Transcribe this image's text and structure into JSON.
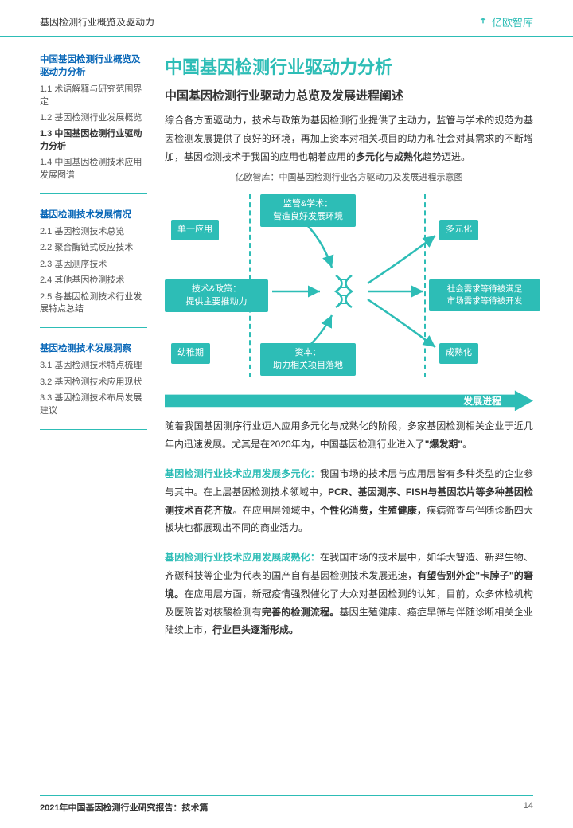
{
  "colors": {
    "teal": "#2DBDB6",
    "blue": "#0A68B8",
    "text": "#333333",
    "muted": "#555555"
  },
  "header": {
    "label": "基因检测行业概览及驱动力",
    "brand": "亿欧智库"
  },
  "sidebar": {
    "sections": [
      {
        "heading": "中国基因检测行业概览及驱动力分析",
        "items": [
          {
            "label": "1.1 术语解释与研究范围界定",
            "active": false
          },
          {
            "label": "1.2 基因检测行业发展概览",
            "active": false
          },
          {
            "label": "1.3 中国基因检测行业驱动力分析",
            "active": true
          },
          {
            "label": "1.4 中国基因检测技术应用发展图谱",
            "active": false
          }
        ]
      },
      {
        "heading": "基因检测技术发展情况",
        "items": [
          {
            "label": "2.1 基因检测技术总览",
            "active": false
          },
          {
            "label": "2.2 聚合酶链式反应技术",
            "active": false
          },
          {
            "label": "2.3 基因测序技术",
            "active": false
          },
          {
            "label": "2.4 其他基因检测技术",
            "active": false
          },
          {
            "label": "2.5 各基因检测技术行业发展特点总结",
            "active": false
          }
        ]
      },
      {
        "heading": "基因检测技术发展洞察",
        "items": [
          {
            "label": "3.1 基因检测技术特点梳理",
            "active": false
          },
          {
            "label": "3.2 基因检测技术应用现状",
            "active": false
          },
          {
            "label": "3.3 基因检测技术布局发展建议",
            "active": false
          }
        ]
      }
    ]
  },
  "main": {
    "title": "中国基因检测行业驱动力分析",
    "subtitle": "中国基因检测行业驱动力总览及发展进程阐述",
    "intro_p1": "综合各方面驱动力，技术与政策为基因检测行业提供了主动力，监管与学术的规范为基因检测发展提供了良好的环境，再加上资本对相关项目的助力和社会对其需求的不断增加，基因检测技术于我国的应用也朝着应用的",
    "intro_bold1": "多元化与成熟化",
    "intro_p2": "趋势迈进。",
    "diagram_caption": "亿欧智库：中国基因检测行业各方驱动力及发展进程示意图",
    "para2_a": "随着我国基因测序行业迈入应用多元化与成熟化的阶段，多家基因检测相关企业于近几年内迅速发展。尤其是在2020年内，中国基因检测行业进入了",
    "para2_b": "\"爆发期\"",
    "para2_c": "。",
    "para3_lead": "基因检测行业技术应用发展多元化：",
    "para3_a": "我国市场的技术层与应用层皆有多种类型的企业参与其中。在上层基因检测技术领域中，",
    "para3_b": "PCR、基因测序、FISH与基因芯片等多种基因检测技术百花齐放",
    "para3_c": "。在应用层领域中，",
    "para3_d": "个性化消费，生殖健康，",
    "para3_e": "疾病筛查与伴随诊断四大板块也都展现出不同的商业活力。",
    "para4_lead": "基因检测行业技术应用发展成熟化：",
    "para4_a": "在我国市场的技术层中，如华大智造、新羿生物、齐碳科技等企业为代表的国产自有基因检测技术发展迅速，",
    "para4_b": "有望告别外企\"卡脖子\"的窘境。",
    "para4_c": "在应用层方面，新冠疫情强烈催化了大众对基因检测的认知，目前，众多体检机构及医院皆对核酸检测有",
    "para4_d": "完善的检测流程。",
    "para4_e": "基因生殖健康、癌症早筛与伴随诊断相关企业陆续上市，",
    "para4_f": "行业巨头逐渐形成。"
  },
  "diagram": {
    "boxes": {
      "single_app": "单一应用",
      "supervision": "监管&学术：\n营造良好发展环境",
      "tech_policy": "技术&政策：\n提供主要推动力",
      "capital": "资本：\n助力相关项目落地",
      "infancy": "幼稚期",
      "diversify": "多元化",
      "social": "社会需求等待被满足\n市场需求等待被开发",
      "mature": "成熟化"
    },
    "progress_label": "发展进程",
    "box_color": "#2DBDB6",
    "arrow_color": "#2DBDB6"
  },
  "footer": {
    "title": "2021年中国基因检测行业研究报告：技术篇",
    "page": "14"
  }
}
